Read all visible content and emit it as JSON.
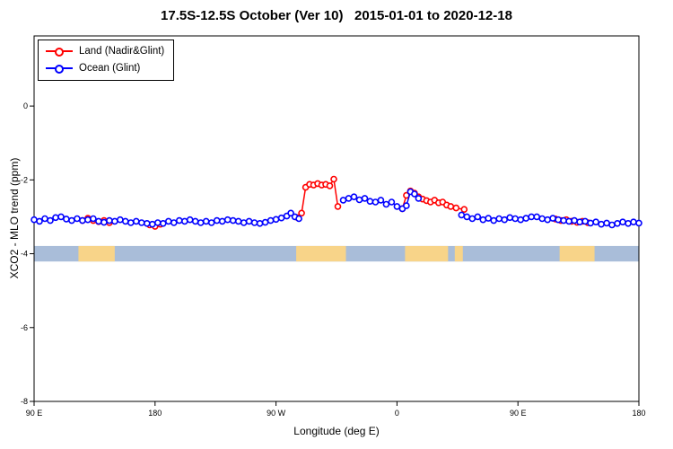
{
  "title": "17.5S-12.5S October (Ver 10)   2015-01-01 to 2020-12-18",
  "legend": {
    "items": [
      {
        "label": "Land (Nadir&Glint)",
        "color": "#ff0000"
      },
      {
        "label": "Ocean (Glint)",
        "color": "#0000ff"
      }
    ]
  },
  "chart_data": {
    "type": "line",
    "title": "17.5S-12.5S October (Ver 10)   2015-01-01 to 2020-12-18",
    "xlabel": "Longitude (deg E)",
    "ylabel": "XCO2 - MLO trend (ppm)",
    "xlim": [
      90,
      540
    ],
    "ylim": [
      -8,
      1.9
    ],
    "grid": false,
    "legend_position": "top-left",
    "xticks": [
      {
        "value": 90,
        "label": "90 E"
      },
      {
        "value": 180,
        "label": "180"
      },
      {
        "value": 270,
        "label": "90 W"
      },
      {
        "value": 360,
        "label": "0"
      },
      {
        "value": 450,
        "label": "90 E"
      },
      {
        "value": 540,
        "label": "180"
      }
    ],
    "yticks": [
      {
        "value": 0,
        "label": "0"
      },
      {
        "value": -2,
        "label": "-2"
      },
      {
        "value": -4,
        "label": "-4"
      },
      {
        "value": -6,
        "label": "-6"
      },
      {
        "value": -8,
        "label": "-8"
      }
    ],
    "map_band": {
      "y_range": [
        -3.79,
        -4.21
      ],
      "ocean_color": "#a9bdd9",
      "land_color": "#f8d489",
      "land_patches": [
        [
          123,
          150
        ],
        [
          285,
          322
        ],
        [
          366,
          398
        ],
        [
          403,
          409
        ],
        [
          481,
          507
        ]
      ]
    },
    "series": [
      {
        "name": "Land (Nadir&Glint)",
        "color": "#ff0000",
        "segments": [
          [
            [
              126,
              -3.1
            ],
            [
              130,
              -3.04
            ],
            [
              134,
              -3.1
            ],
            [
              138,
              -3.13
            ],
            [
              142,
              -3.1
            ],
            [
              146,
              -3.16
            ]
          ],
          [
            [
              176,
              -3.22
            ],
            [
              180,
              -3.26
            ],
            [
              184,
              -3.2
            ]
          ],
          [
            [
              286,
              -3.02
            ],
            [
              289,
              -2.9
            ],
            [
              292,
              -2.2
            ],
            [
              295,
              -2.12
            ],
            [
              298,
              -2.14
            ],
            [
              301,
              -2.1
            ],
            [
              304,
              -2.14
            ],
            [
              307,
              -2.12
            ],
            [
              310,
              -2.16
            ],
            [
              313,
              -1.98
            ],
            [
              316,
              -2.72
            ]
          ],
          [
            [
              364,
              -2.78
            ],
            [
              367,
              -2.42
            ],
            [
              370,
              -2.3
            ],
            [
              373,
              -2.36
            ],
            [
              376,
              -2.46
            ],
            [
              379,
              -2.52
            ],
            [
              382,
              -2.56
            ],
            [
              385,
              -2.6
            ],
            [
              388,
              -2.55
            ],
            [
              391,
              -2.62
            ],
            [
              394,
              -2.6
            ],
            [
              397,
              -2.68
            ],
            [
              400,
              -2.72
            ],
            [
              404,
              -2.76
            ],
            [
              410,
              -2.8
            ]
          ],
          [
            [
              478,
              -3.06
            ],
            [
              482,
              -3.1
            ],
            [
              486,
              -3.08
            ],
            [
              490,
              -3.12
            ],
            [
              494,
              -3.15
            ],
            [
              498,
              -3.12
            ],
            [
              502,
              -3.16
            ]
          ]
        ]
      },
      {
        "name": "Ocean (Glint)",
        "color": "#0000ff",
        "segments": [
          [
            [
              90,
              -3.08
            ],
            [
              94,
              -3.12
            ],
            [
              98,
              -3.05
            ],
            [
              102,
              -3.1
            ],
            [
              106,
              -3.02
            ],
            [
              110,
              -3.0
            ],
            [
              114,
              -3.06
            ],
            [
              118,
              -3.1
            ],
            [
              122,
              -3.05
            ],
            [
              126,
              -3.1
            ],
            [
              130,
              -3.08
            ],
            [
              134,
              -3.05
            ],
            [
              138,
              -3.12
            ],
            [
              142,
              -3.15
            ],
            [
              146,
              -3.1
            ],
            [
              150,
              -3.12
            ],
            [
              154,
              -3.08
            ],
            [
              158,
              -3.12
            ],
            [
              162,
              -3.16
            ],
            [
              166,
              -3.12
            ],
            [
              170,
              -3.16
            ],
            [
              174,
              -3.18
            ],
            [
              178,
              -3.2
            ],
            [
              182,
              -3.16
            ],
            [
              186,
              -3.18
            ],
            [
              190,
              -3.12
            ],
            [
              194,
              -3.16
            ],
            [
              198,
              -3.1
            ],
            [
              202,
              -3.12
            ],
            [
              206,
              -3.08
            ],
            [
              210,
              -3.12
            ],
            [
              214,
              -3.16
            ],
            [
              218,
              -3.12
            ],
            [
              222,
              -3.16
            ],
            [
              226,
              -3.1
            ],
            [
              230,
              -3.12
            ],
            [
              234,
              -3.08
            ],
            [
              238,
              -3.1
            ],
            [
              242,
              -3.12
            ],
            [
              246,
              -3.16
            ],
            [
              250,
              -3.12
            ],
            [
              254,
              -3.16
            ],
            [
              258,
              -3.18
            ],
            [
              262,
              -3.15
            ],
            [
              266,
              -3.1
            ],
            [
              270,
              -3.07
            ],
            [
              274,
              -3.03
            ],
            [
              278,
              -2.98
            ],
            [
              281,
              -2.9
            ],
            [
              284,
              -3.0
            ],
            [
              287,
              -3.05
            ]
          ],
          [
            [
              320,
              -2.55
            ],
            [
              324,
              -2.5
            ],
            [
              328,
              -2.46
            ],
            [
              332,
              -2.54
            ],
            [
              336,
              -2.5
            ],
            [
              340,
              -2.58
            ],
            [
              344,
              -2.6
            ],
            [
              348,
              -2.55
            ],
            [
              352,
              -2.66
            ],
            [
              356,
              -2.6
            ],
            [
              360,
              -2.72
            ],
            [
              364,
              -2.78
            ],
            [
              367,
              -2.7
            ],
            [
              370,
              -2.32
            ],
            [
              373,
              -2.38
            ],
            [
              376,
              -2.5
            ]
          ],
          [
            [
              408,
              -2.95
            ],
            [
              412,
              -3.0
            ],
            [
              416,
              -3.05
            ],
            [
              420,
              -3.0
            ],
            [
              424,
              -3.08
            ],
            [
              428,
              -3.04
            ],
            [
              432,
              -3.1
            ],
            [
              436,
              -3.05
            ],
            [
              440,
              -3.08
            ],
            [
              444,
              -3.02
            ],
            [
              448,
              -3.05
            ],
            [
              452,
              -3.08
            ],
            [
              456,
              -3.04
            ],
            [
              460,
              -3.0
            ],
            [
              464,
              -3.0
            ],
            [
              468,
              -3.05
            ],
            [
              472,
              -3.08
            ],
            [
              476,
              -3.04
            ],
            [
              480,
              -3.08
            ],
            [
              484,
              -3.1
            ],
            [
              488,
              -3.12
            ],
            [
              492,
              -3.1
            ],
            [
              496,
              -3.14
            ],
            [
              500,
              -3.12
            ],
            [
              504,
              -3.17
            ],
            [
              508,
              -3.14
            ],
            [
              512,
              -3.2
            ],
            [
              516,
              -3.17
            ],
            [
              520,
              -3.22
            ],
            [
              524,
              -3.18
            ],
            [
              528,
              -3.14
            ],
            [
              532,
              -3.18
            ],
            [
              536,
              -3.14
            ],
            [
              540,
              -3.17
            ]
          ]
        ]
      }
    ]
  }
}
